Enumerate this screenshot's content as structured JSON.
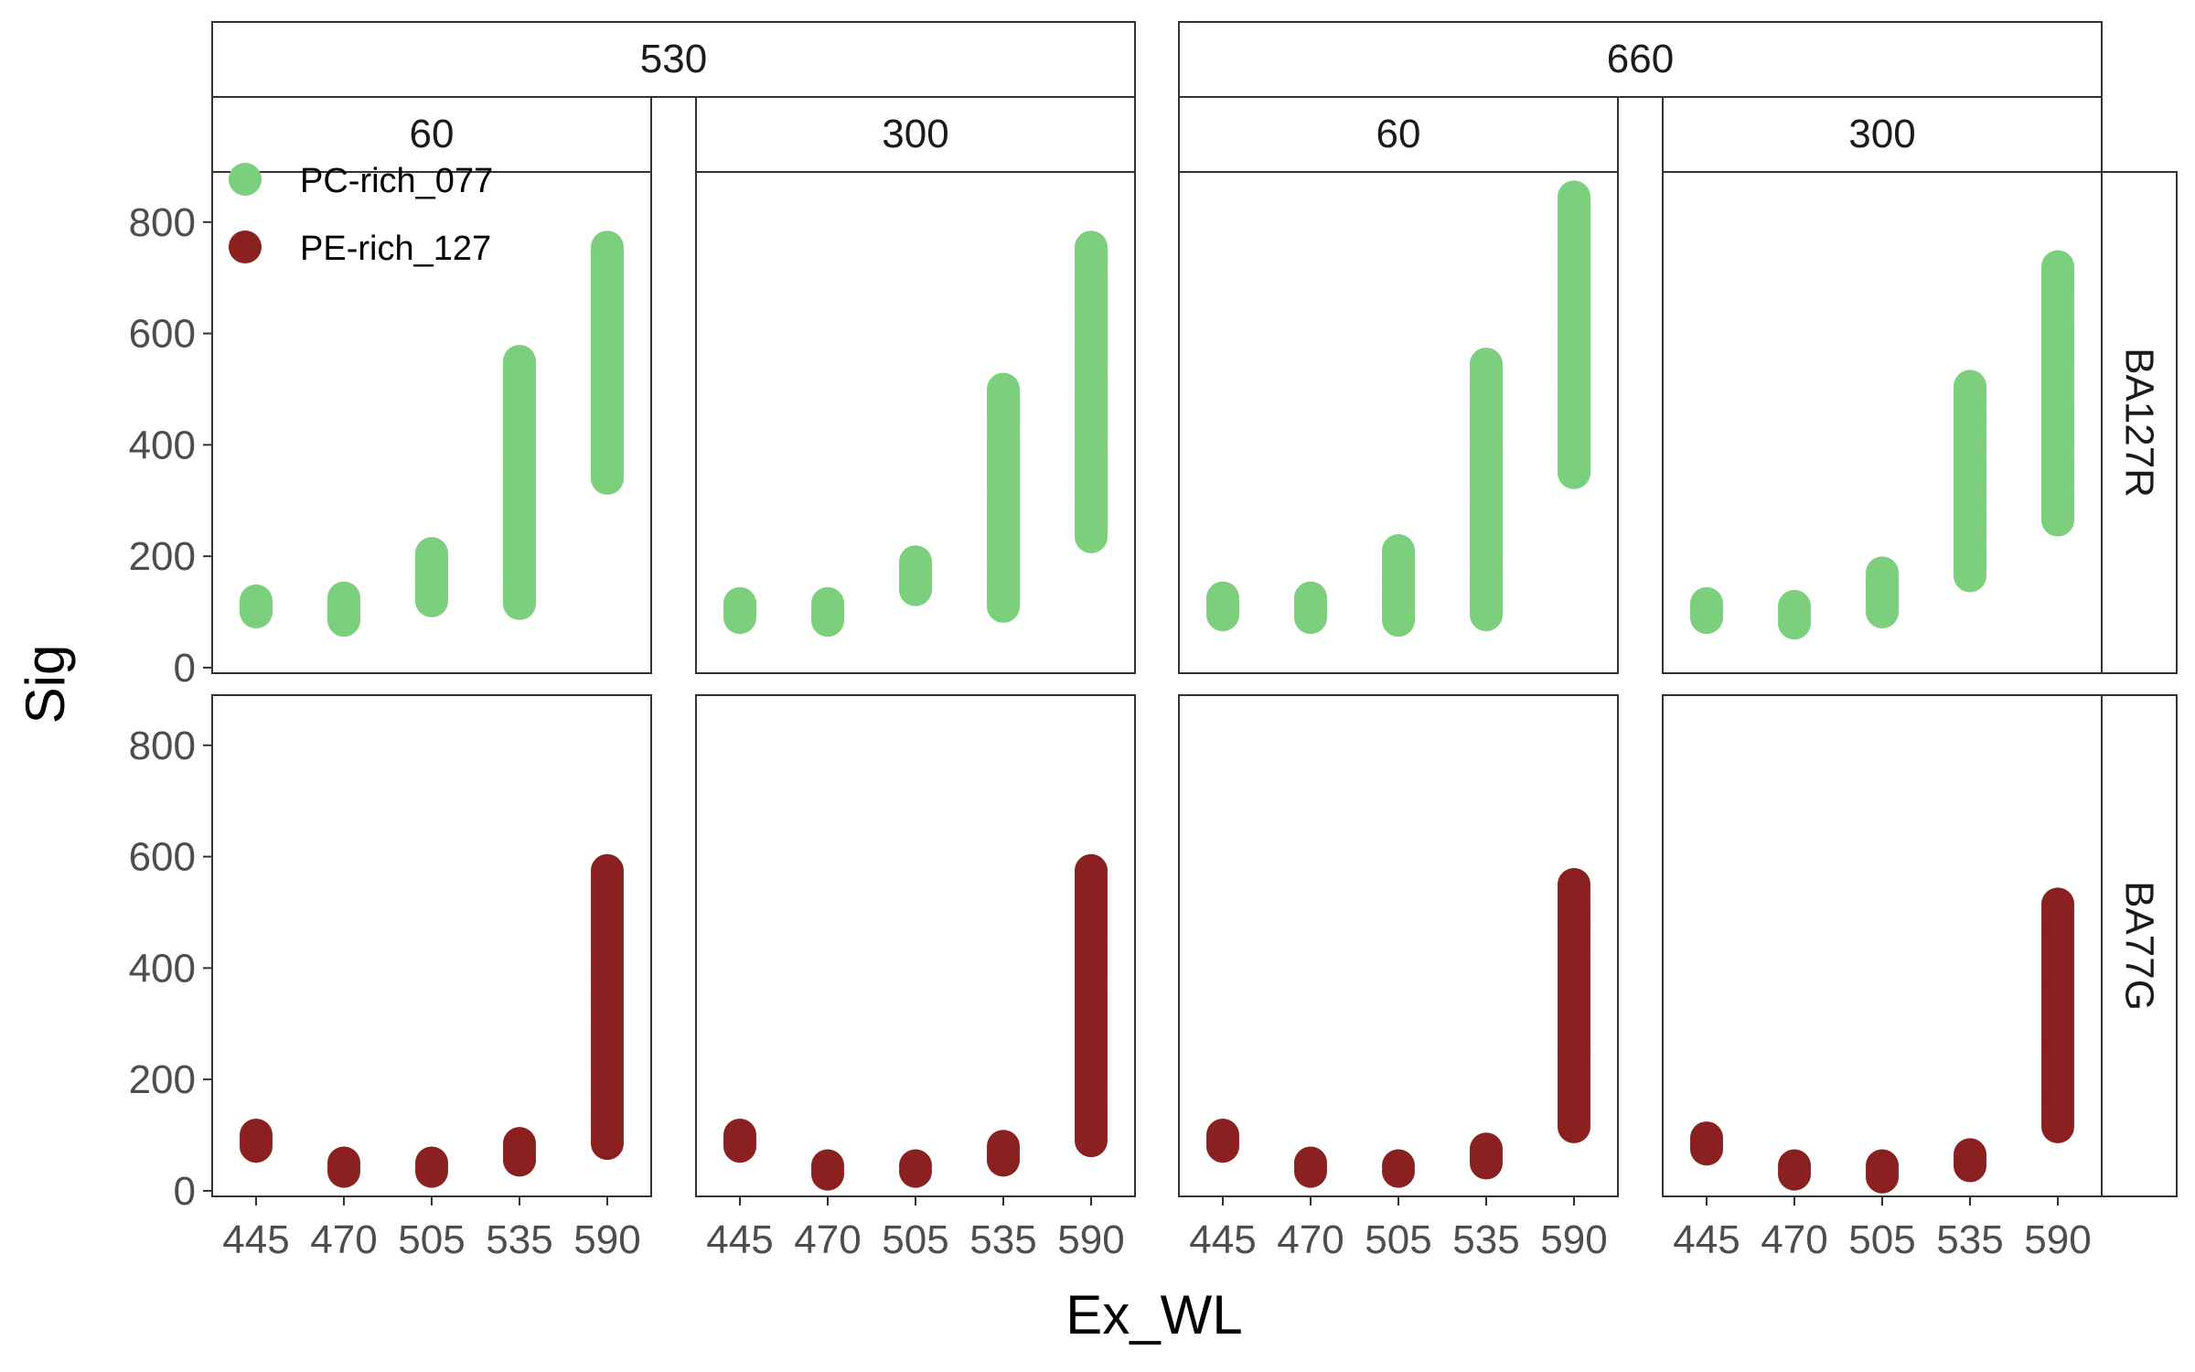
{
  "chart_data": {
    "type": "scatter",
    "xlabel": "Ex_WL",
    "ylabel": "Sig",
    "categories": [
      "445",
      "470",
      "505",
      "535",
      "590"
    ],
    "ylim": [
      -10,
      890
    ],
    "yticks": [
      0,
      200,
      400,
      600,
      800
    ],
    "grid": false,
    "legend_position": "top-left",
    "facets": {
      "col_outer_labels": [
        "530",
        "660"
      ],
      "col_inner_labels": [
        "60",
        "300"
      ],
      "row_labels": [
        "BA127R",
        "BA77G"
      ]
    },
    "series": [
      {
        "name": "PC-rich_077",
        "color": "#7ccf7c",
        "row": "BA127R"
      },
      {
        "name": "PE-rich_127",
        "color": "#8b2020",
        "row": "BA77G"
      }
    ],
    "panels": [
      {
        "row": "BA127R",
        "outer": "530",
        "inner": "60",
        "series": "PC-rich_077",
        "ranges": [
          [
            100,
            120
          ],
          [
            85,
            125
          ],
          [
            120,
            205
          ],
          [
            115,
            550
          ],
          [
            340,
            755
          ]
        ]
      },
      {
        "row": "BA127R",
        "outer": "530",
        "inner": "300",
        "series": "PC-rich_077",
        "ranges": [
          [
            90,
            115
          ],
          [
            85,
            115
          ],
          [
            140,
            190
          ],
          [
            110,
            500
          ],
          [
            235,
            755
          ]
        ]
      },
      {
        "row": "BA127R",
        "outer": "660",
        "inner": "60",
        "series": "PC-rich_077",
        "ranges": [
          [
            95,
            125
          ],
          [
            90,
            125
          ],
          [
            85,
            210
          ],
          [
            95,
            545
          ],
          [
            350,
            845
          ]
        ]
      },
      {
        "row": "BA127R",
        "outer": "660",
        "inner": "300",
        "series": "PC-rich_077",
        "ranges": [
          [
            90,
            115
          ],
          [
            80,
            110
          ],
          [
            100,
            170
          ],
          [
            165,
            505
          ],
          [
            265,
            720
          ]
        ]
      },
      {
        "row": "BA77G",
        "outer": "530",
        "inner": "60",
        "series": "PE-rich_127",
        "ranges": [
          [
            80,
            100
          ],
          [
            35,
            50
          ],
          [
            35,
            50
          ],
          [
            55,
            85
          ],
          [
            85,
            575
          ]
        ]
      },
      {
        "row": "BA77G",
        "outer": "530",
        "inner": "300",
        "series": "PE-rich_127",
        "ranges": [
          [
            80,
            100
          ],
          [
            30,
            45
          ],
          [
            35,
            45
          ],
          [
            55,
            80
          ],
          [
            90,
            575
          ]
        ]
      },
      {
        "row": "BA77G",
        "outer": "660",
        "inner": "60",
        "series": "PE-rich_127",
        "ranges": [
          [
            80,
            100
          ],
          [
            35,
            50
          ],
          [
            35,
            45
          ],
          [
            50,
            75
          ],
          [
            115,
            550
          ]
        ]
      },
      {
        "row": "BA77G",
        "outer": "660",
        "inner": "300",
        "series": "PE-rich_127",
        "ranges": [
          [
            75,
            95
          ],
          [
            30,
            45
          ],
          [
            25,
            45
          ],
          [
            45,
            65
          ],
          [
            115,
            515
          ]
        ]
      }
    ]
  }
}
